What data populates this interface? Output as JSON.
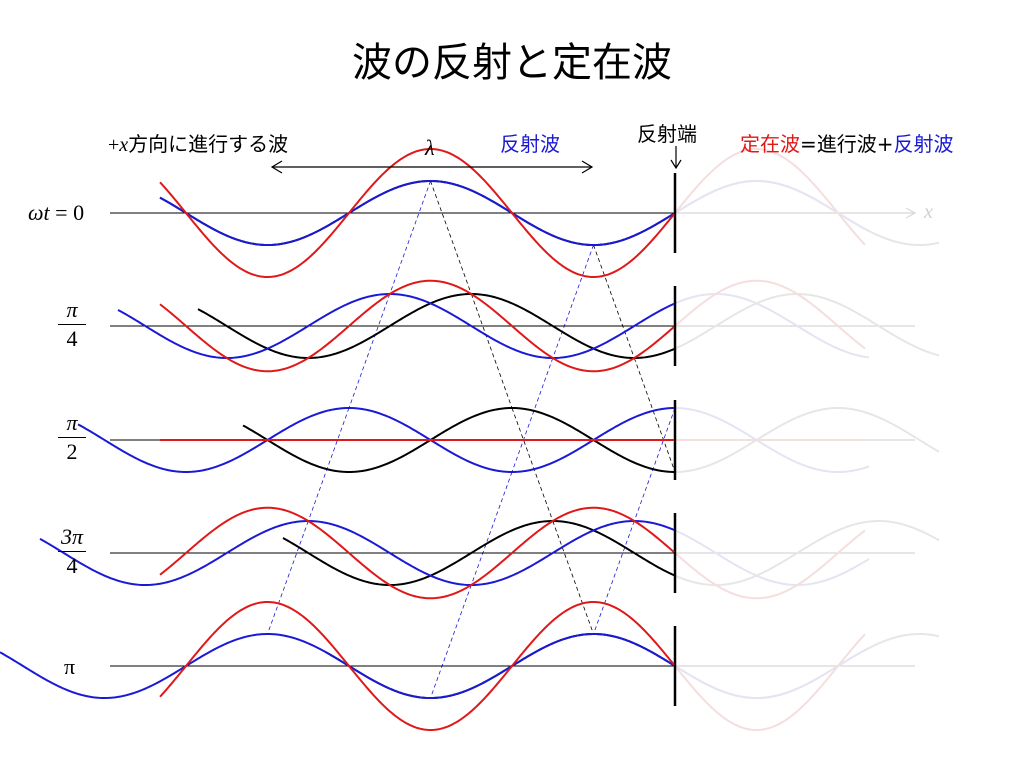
{
  "title": "波の反射と定在波",
  "labels": {
    "incident_prefix": "+",
    "incident_var": "x",
    "incident_suffix": "方向に進行する波",
    "wavelength": "λ",
    "reflected": "反射波",
    "reflection_end": "反射端",
    "standing": "定在波",
    "equals": "=",
    "progressive": "進行波",
    "plus": "+",
    "reflected2": "反射波",
    "x_axis": "x"
  },
  "rows": [
    {
      "label_lhs": "ωt",
      "label_eq": " = ",
      "label_rhs": "0",
      "phase_fraction": 0
    },
    {
      "num": "π",
      "den": "4",
      "phase_fraction": 0.25
    },
    {
      "num": "π",
      "den": "2",
      "phase_fraction": 0.5
    },
    {
      "num": "3π",
      "den": "4",
      "phase_fraction": 0.75
    },
    {
      "single": "π",
      "phase_fraction": 1
    }
  ],
  "colors": {
    "incident": "#000000",
    "reflected": "#1a1ad6",
    "standing": "#e01818",
    "faded": "#d8d8d8",
    "guide": "#000000"
  }
}
